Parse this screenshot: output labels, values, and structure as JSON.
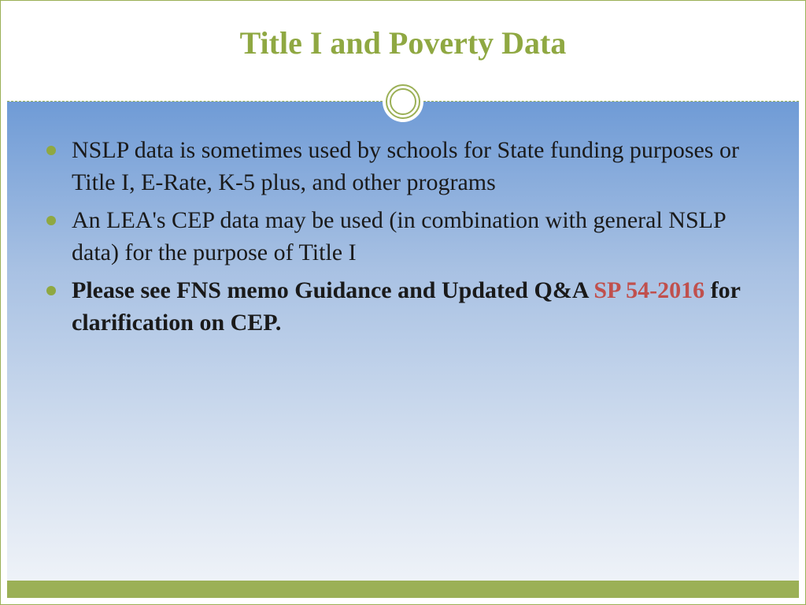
{
  "slide": {
    "title": "Title I and Poverty Data",
    "bullets": [
      {
        "text": "NSLP data is sometimes used by schools for State funding purposes or Title I, E-Rate, K-5 plus, and other programs",
        "bold": false
      },
      {
        "text": "An LEA's CEP data may be used (in combination with general NSLP data) for the purpose of Title I",
        "bold": false
      },
      {
        "prefix": "Please see FNS memo Guidance and Updated Q&A ",
        "ref": "SP 54-2016",
        "suffix": " for clarification on CEP.",
        "bold": true
      }
    ]
  },
  "style": {
    "accent_color": "#8fa842",
    "border_color": "#9bb056",
    "ref_color": "#c0504d",
    "title_fontsize": 40,
    "body_fontsize": 30,
    "gradient_top": "#6f9bd6",
    "gradient_bottom": "#eef2f8",
    "footer_bar_color": "#9bb056",
    "background_color": "#ffffff"
  }
}
